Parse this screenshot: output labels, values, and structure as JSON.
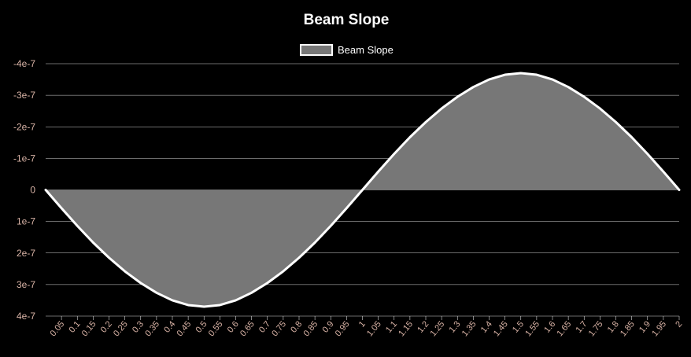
{
  "chart_data": {
    "type": "area",
    "title": "Beam Slope",
    "xlabel": "",
    "ylabel": "",
    "series": [
      {
        "name": "Beam Slope",
        "fill_color": "#777777",
        "line_color": "#ffffff",
        "x": [
          0,
          0.05,
          0.1,
          0.15,
          0.2,
          0.25,
          0.3,
          0.35,
          0.4,
          0.45,
          0.5,
          0.55,
          0.6,
          0.65,
          0.7,
          0.75,
          0.8,
          0.85,
          0.9,
          0.95,
          1,
          1.05,
          1.1,
          1.15,
          1.2,
          1.25,
          1.3,
          1.35,
          1.4,
          1.45,
          1.5,
          1.55,
          1.6,
          1.65,
          1.7,
          1.75,
          1.8,
          1.85,
          1.9,
          1.95,
          2
        ],
        "values": [
          0,
          5.8e-08,
          1.14e-07,
          1.67e-07,
          2.15e-07,
          2.58e-07,
          2.95e-07,
          3.26e-07,
          3.5e-07,
          3.65e-07,
          3.7e-07,
          3.65e-07,
          3.5e-07,
          3.26e-07,
          2.95e-07,
          2.58e-07,
          2.15e-07,
          1.67e-07,
          1.14e-07,
          5.8e-08,
          0,
          -5.8e-08,
          -1.14e-07,
          -1.67e-07,
          -2.15e-07,
          -2.58e-07,
          -2.95e-07,
          -3.26e-07,
          -3.5e-07,
          -3.65e-07,
          -3.7e-07,
          -3.65e-07,
          -3.5e-07,
          -3.26e-07,
          -2.95e-07,
          -2.58e-07,
          -2.15e-07,
          -1.67e-07,
          -1.14e-07,
          -5.8e-08,
          0
        ]
      }
    ],
    "x_tick_labels": [
      "0.05",
      "0.1",
      "0.15",
      "0.2",
      "0.25",
      "0.3",
      "0.35",
      "0.4",
      "0.45",
      "0.5",
      "0.55",
      "0.6",
      "0.65",
      "0.7",
      "0.75",
      "0.8",
      "0.85",
      "0.9",
      "0.95",
      "1",
      "1.05",
      "1.1",
      "1.15",
      "1.2",
      "1.25",
      "1.3",
      "1.35",
      "1.4",
      "1.45",
      "1.5",
      "1.55",
      "1.6",
      "1.65",
      "1.7",
      "1.75",
      "1.8",
      "1.85",
      "1.9",
      "1.95",
      "2"
    ],
    "y_ticks": [
      {
        "value": -4e-07,
        "label": "-4e-7"
      },
      {
        "value": -3e-07,
        "label": "-3e-7"
      },
      {
        "value": -2e-07,
        "label": "-2e-7"
      },
      {
        "value": -1e-07,
        "label": "-1e-7"
      },
      {
        "value": 0,
        "label": "0"
      },
      {
        "value": 1e-07,
        "label": "1e-7"
      },
      {
        "value": 2e-07,
        "label": "2e-7"
      },
      {
        "value": 3e-07,
        "label": "3e-7"
      },
      {
        "value": 4e-07,
        "label": "4e-7"
      }
    ],
    "xlim": [
      0,
      2
    ],
    "ylim": [
      -4e-07,
      4e-07
    ],
    "y_axis_reversed": true,
    "grid": true,
    "legend_position": "top-center",
    "colors": {
      "background": "#000000",
      "title": "#ffffff",
      "grid": "#ffffff",
      "tick_label": "#d9b3a6",
      "legend_text": "#ffffff"
    }
  }
}
